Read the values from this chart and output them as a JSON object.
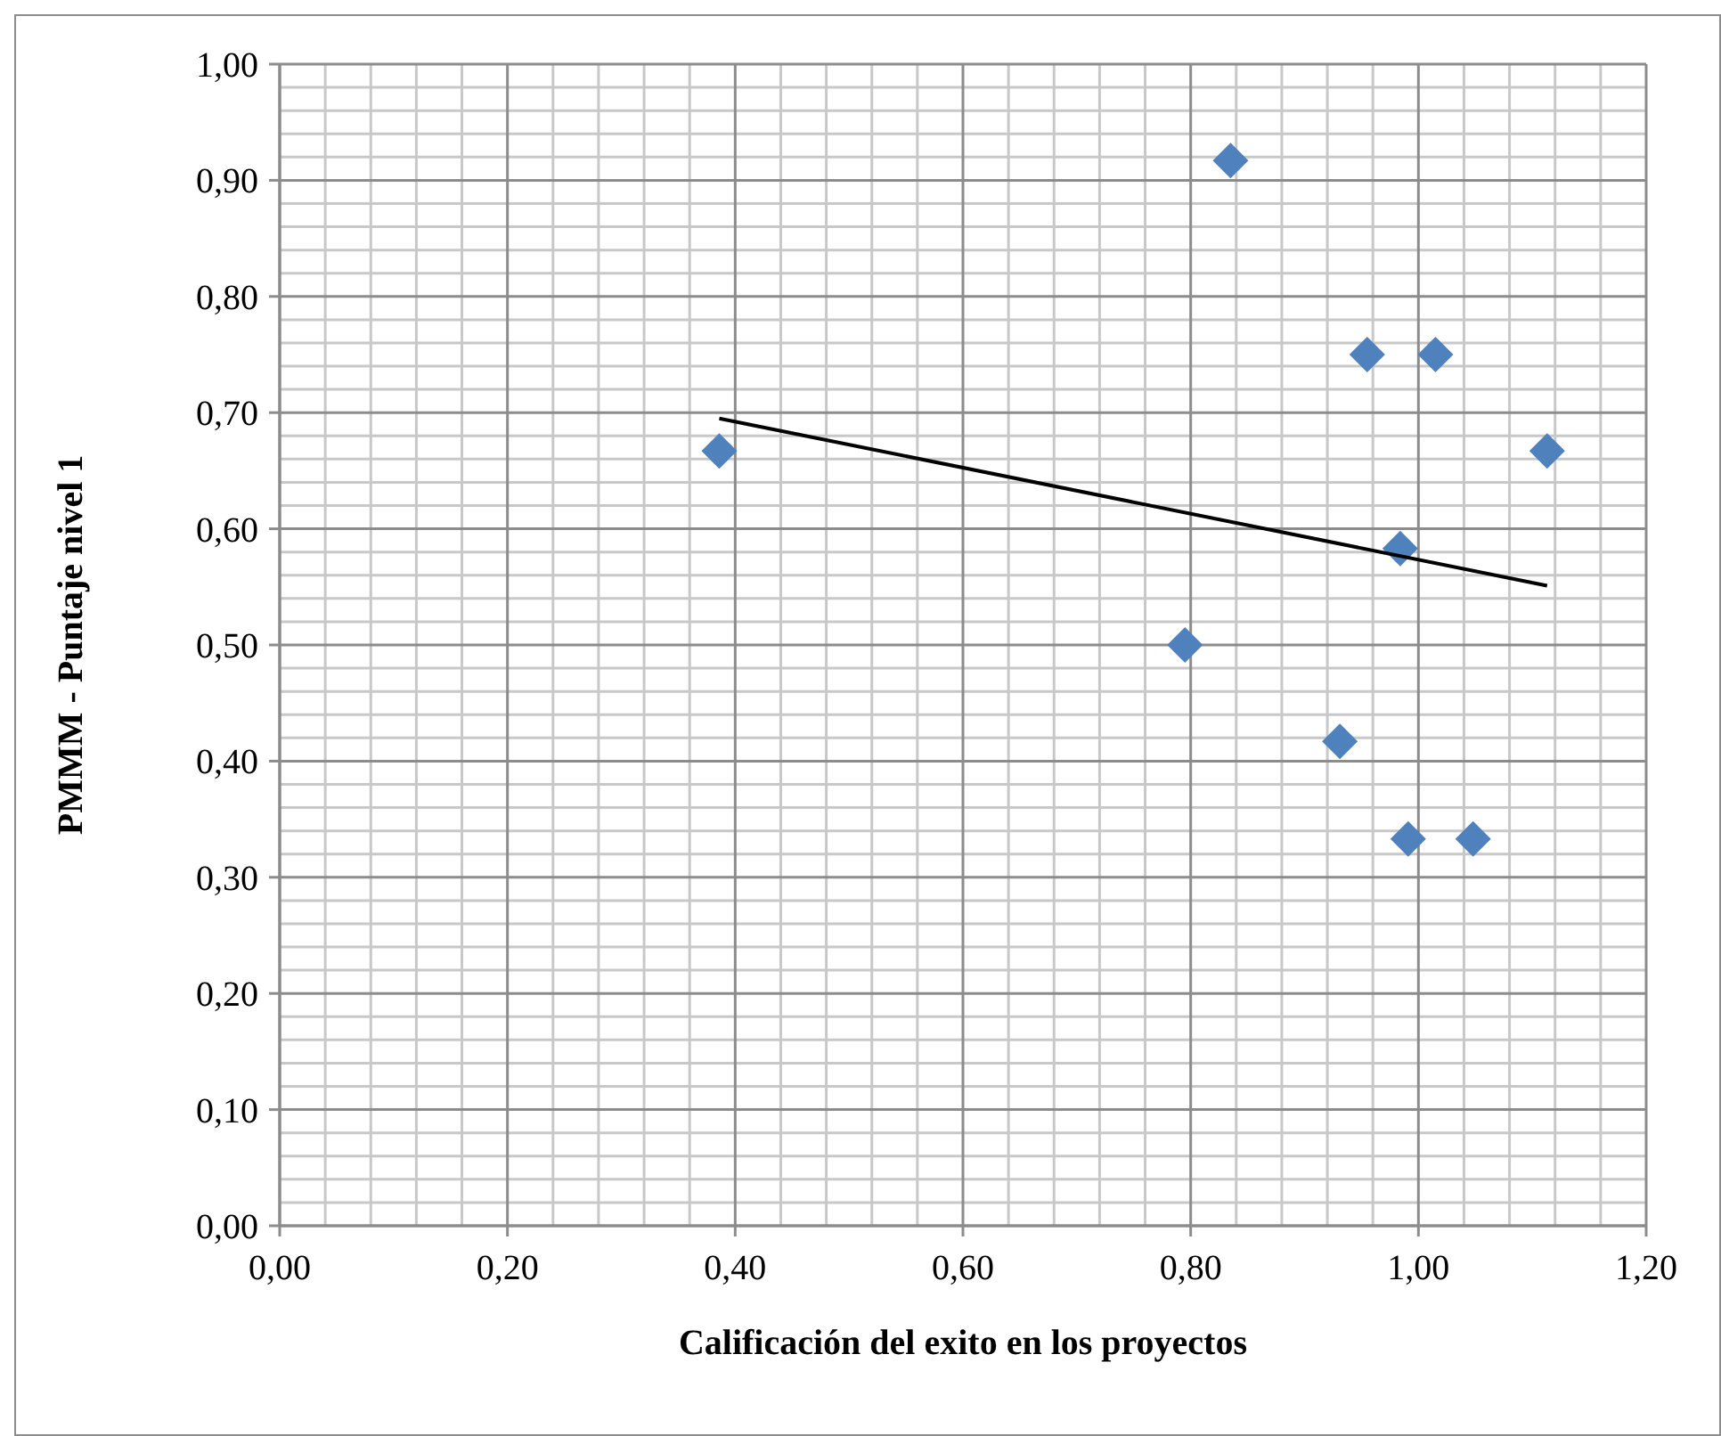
{
  "chart_data": {
    "type": "scatter",
    "xlabel": "Calificación del exito en los proyectos",
    "ylabel": "PMMM - Puntaje nivel 1",
    "xlim": [
      0,
      1.2
    ],
    "ylim": [
      0,
      1
    ],
    "xticks": [
      {
        "value": 0,
        "label": "0,00"
      },
      {
        "value": 0.2,
        "label": "0,20"
      },
      {
        "value": 0.4,
        "label": "0,40"
      },
      {
        "value": 0.6,
        "label": "0,60"
      },
      {
        "value": 0.8,
        "label": "0,80"
      },
      {
        "value": 1,
        "label": "1,00"
      },
      {
        "value": 1.2,
        "label": "1,20"
      }
    ],
    "yticks": [
      {
        "value": 0,
        "label": "0,00"
      },
      {
        "value": 0.1,
        "label": "0,10"
      },
      {
        "value": 0.2,
        "label": "0,20"
      },
      {
        "value": 0.3,
        "label": "0,30"
      },
      {
        "value": 0.4,
        "label": "0,40"
      },
      {
        "value": 0.5,
        "label": "0,50"
      },
      {
        "value": 0.6,
        "label": "0,60"
      },
      {
        "value": 0.7,
        "label": "0,70"
      },
      {
        "value": 0.8,
        "label": "0,80"
      },
      {
        "value": 0.9,
        "label": "0,90"
      },
      {
        "value": 1,
        "label": "1,00"
      }
    ],
    "grid": true,
    "marker": "diamond",
    "series": [
      {
        "color": "#4f81bd",
        "x": [
          0.386,
          0.795,
          0.835,
          0.931,
          0.955,
          0.984,
          0.991,
          1.015,
          1.048,
          1.113
        ],
        "values": [
          0.667,
          0.5,
          0.917,
          0.417,
          0.75,
          0.583,
          0.333,
          0.75,
          0.333,
          0.667
        ]
      },
      {
        "type": "line",
        "color": "#000000",
        "marker": "none",
        "line_style": "solid",
        "x": [
          0.386,
          1.113
        ],
        "values": [
          0.695,
          0.551
        ]
      }
    ]
  }
}
